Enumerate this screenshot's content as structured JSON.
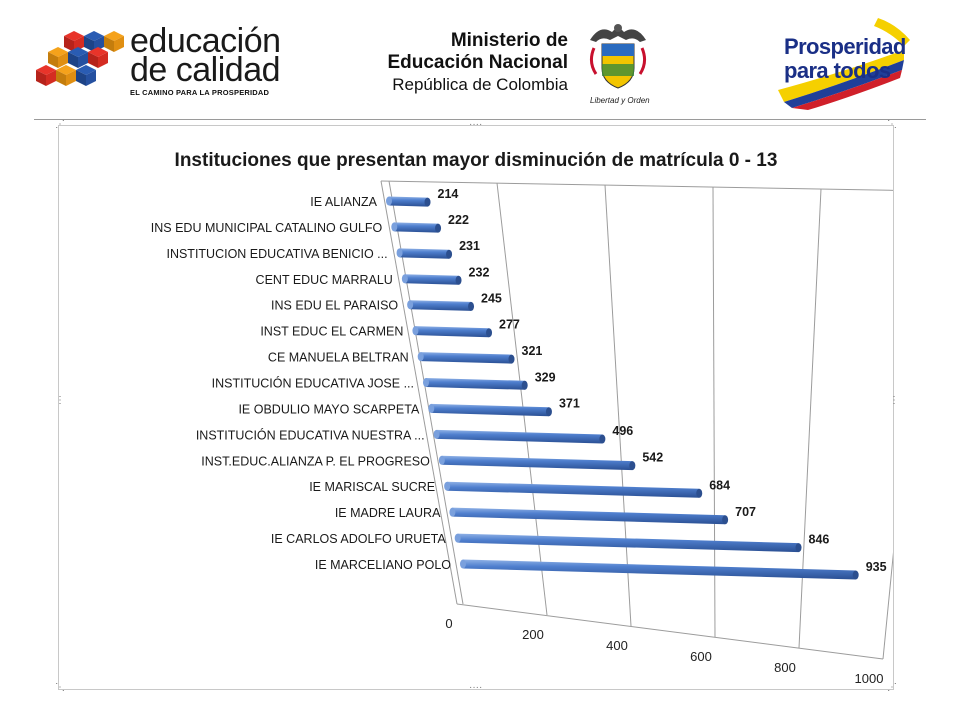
{
  "header": {
    "logo_educacion": {
      "line1": "educación",
      "line2": "de calidad",
      "tagline": "EL CAMINO PARA LA PROSPERIDAD"
    },
    "logo_ministerio": {
      "line1": "Ministerio de",
      "line2": "Educación Nacional",
      "line3": "República de Colombia",
      "motto": "Libertad y Orden"
    },
    "logo_prosperidad": {
      "line1": "Prosperidad",
      "line2": "para todos"
    }
  },
  "colors": {
    "bar": "#4472c4",
    "bar_dark": "#2c4f8f",
    "bar_light": "#7aa0dd",
    "grid": "#9c9c9c",
    "title": "#1a1a1a"
  },
  "chart_data": {
    "type": "bar",
    "orientation": "horizontal",
    "title": "Instituciones que presentan mayor disminución  de matrícula 0 - 13",
    "categories": [
      "IE ALIANZA",
      "INS EDU MUNICIPAL  CATALINO GULFO",
      "INSTITUCION  EDUCATIVA  BENICIO ...",
      "CENT EDUC MARRALU",
      "INS EDU EL PARAISO",
      "INST EDUC EL CARMEN",
      "CE MANUELA  BELTRAN",
      "INSTITUCIÓN  EDUCATIVA  JOSE ...",
      "IE OBDULIO  MAYO SCARPETA",
      "INSTITUCIÓN  EDUCATIVA  NUESTRA ...",
      "INST.EDUC.ALIANZA  P. EL PROGRESO",
      "IE MARISCAL SUCRE",
      "IE MADRE LAURA",
      "IE CARLOS ADOLFO URUETA",
      "IE MARCELIANO  POLO"
    ],
    "values": [
      214,
      222,
      231,
      232,
      245,
      277,
      321,
      329,
      371,
      496,
      542,
      684,
      707,
      846,
      935
    ],
    "data_labels": [
      "214",
      "222",
      "231",
      "232",
      "245",
      "277",
      "321",
      "329",
      "371",
      "496",
      "542",
      "684",
      "707",
      "846",
      "935"
    ],
    "xlim": [
      0,
      1000
    ],
    "x_ticks": [
      0,
      200,
      400,
      600,
      800,
      1000
    ],
    "x_tick_labels": [
      "0",
      "200",
      "400",
      "600",
      "800",
      "1000"
    ],
    "grid": true,
    "legend": "none",
    "style": "3d-cylinder"
  }
}
